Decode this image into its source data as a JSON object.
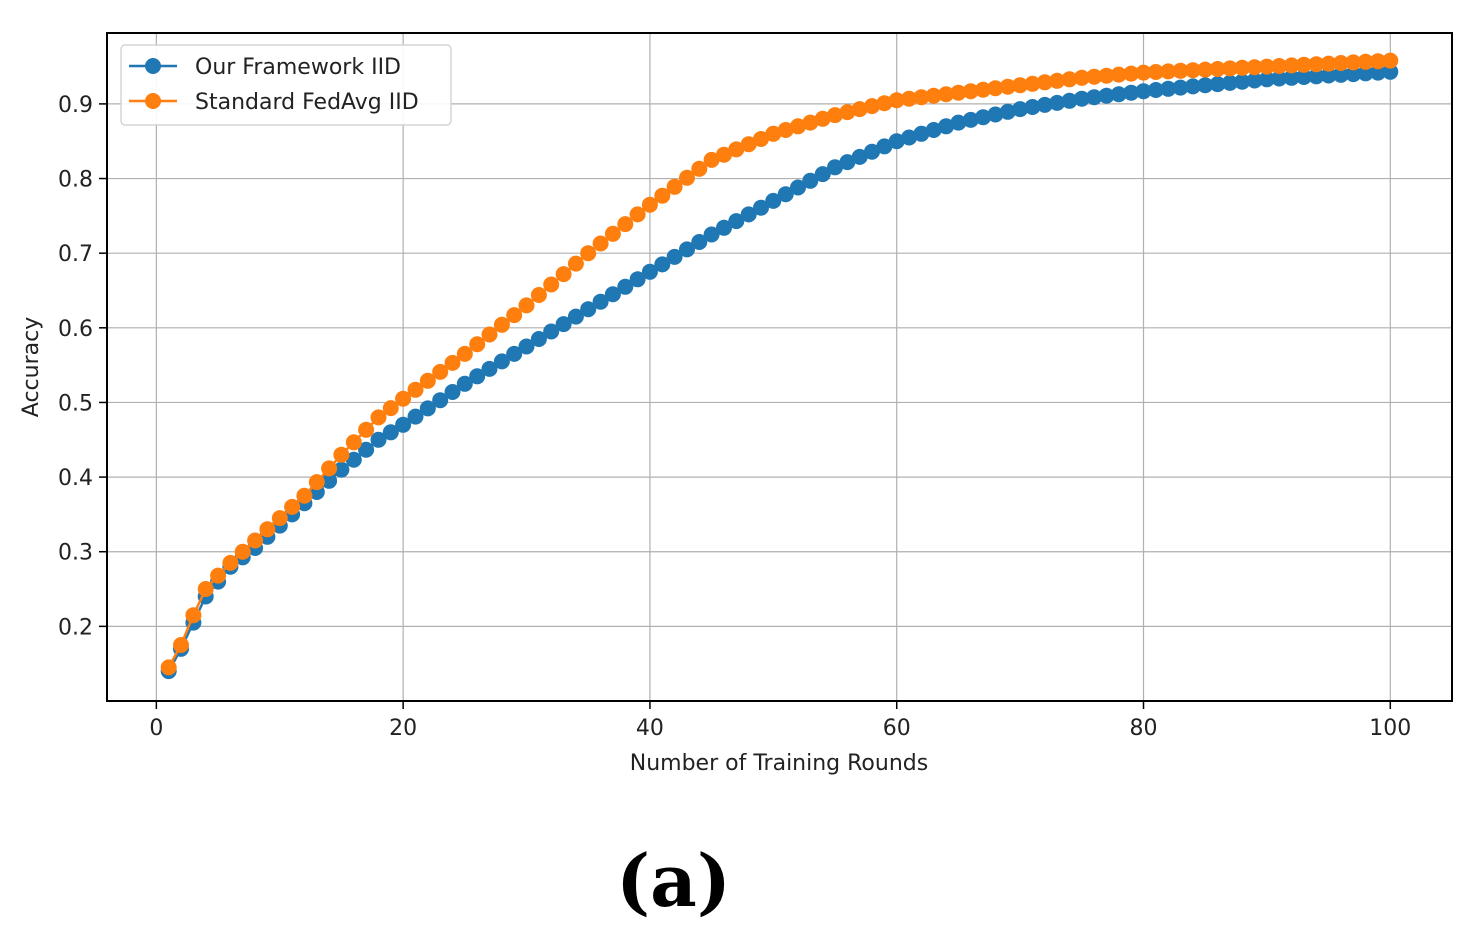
{
  "panel_label": "(a)",
  "colors": {
    "series1": "#1f77b4",
    "series2": "#ff7f0e",
    "grid": "#b0b0b0",
    "axis": "#000000"
  },
  "chart_data": {
    "type": "line",
    "title": "",
    "xlabel": "Number of Training Rounds",
    "ylabel": "Accuracy",
    "xlim": [
      -4,
      105
    ],
    "ylim": [
      0.1,
      0.995
    ],
    "xticks": [
      0,
      20,
      40,
      60,
      80,
      100
    ],
    "yticks": [
      0.2,
      0.3,
      0.4,
      0.5,
      0.6,
      0.7,
      0.8,
      0.9
    ],
    "grid": true,
    "legend_position": "top-left",
    "marker": "circle",
    "x": {
      "start": 1,
      "end": 100,
      "step": 1
    },
    "series": [
      {
        "name": "Our Framework IID",
        "color": "#1f77b4",
        "anchors": [
          [
            1,
            0.14
          ],
          [
            2,
            0.17
          ],
          [
            3,
            0.205
          ],
          [
            4,
            0.24
          ],
          [
            5,
            0.26
          ],
          [
            6,
            0.28
          ],
          [
            8,
            0.305
          ],
          [
            10,
            0.335
          ],
          [
            12,
            0.365
          ],
          [
            15,
            0.41
          ],
          [
            18,
            0.45
          ],
          [
            20,
            0.47
          ],
          [
            25,
            0.525
          ],
          [
            30,
            0.575
          ],
          [
            35,
            0.625
          ],
          [
            40,
            0.675
          ],
          [
            45,
            0.725
          ],
          [
            50,
            0.77
          ],
          [
            55,
            0.815
          ],
          [
            60,
            0.85
          ],
          [
            65,
            0.875
          ],
          [
            70,
            0.893
          ],
          [
            75,
            0.907
          ],
          [
            80,
            0.917
          ],
          [
            85,
            0.925
          ],
          [
            90,
            0.933
          ],
          [
            95,
            0.938
          ],
          [
            100,
            0.943
          ]
        ]
      },
      {
        "name": "Standard FedAvg IID",
        "color": "#ff7f0e",
        "anchors": [
          [
            1,
            0.145
          ],
          [
            2,
            0.175
          ],
          [
            3,
            0.215
          ],
          [
            4,
            0.25
          ],
          [
            5,
            0.268
          ],
          [
            6,
            0.285
          ],
          [
            8,
            0.315
          ],
          [
            10,
            0.345
          ],
          [
            12,
            0.375
          ],
          [
            15,
            0.43
          ],
          [
            18,
            0.48
          ],
          [
            20,
            0.505
          ],
          [
            25,
            0.565
          ],
          [
            30,
            0.63
          ],
          [
            35,
            0.7
          ],
          [
            40,
            0.765
          ],
          [
            45,
            0.825
          ],
          [
            50,
            0.86
          ],
          [
            55,
            0.885
          ],
          [
            60,
            0.905
          ],
          [
            65,
            0.915
          ],
          [
            70,
            0.925
          ],
          [
            75,
            0.935
          ],
          [
            80,
            0.942
          ],
          [
            85,
            0.946
          ],
          [
            90,
            0.95
          ],
          [
            95,
            0.954
          ],
          [
            100,
            0.958
          ]
        ]
      }
    ]
  }
}
